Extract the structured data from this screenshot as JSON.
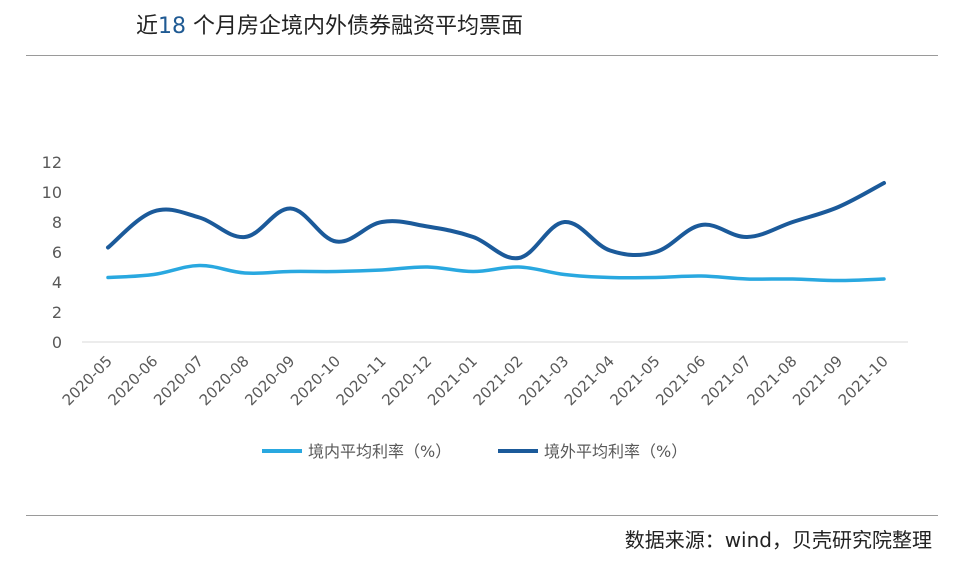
{
  "header": {
    "title_pre": "近",
    "title_num": "18",
    "title_post": " 个月房企境内外债券融资平均票面"
  },
  "footer": {
    "source": "数据来源：wind，贝壳研究院整理"
  },
  "chart_data": {
    "type": "line",
    "x": [
      "2020-05",
      "2020-06",
      "2020-07",
      "2020-08",
      "2020-09",
      "2020-10",
      "2020-11",
      "2020-12",
      "2021-01",
      "2021-02",
      "2021-03",
      "2021-04",
      "2021-05",
      "2021-06",
      "2021-07",
      "2021-08",
      "2021-09",
      "2021-10"
    ],
    "ylim": [
      0,
      12
    ],
    "yticks": [
      0,
      2,
      4,
      6,
      8,
      10,
      12
    ],
    "grid": false,
    "legend": "bottom",
    "smooth": true,
    "series": [
      {
        "name": "境内平均利率（%）",
        "color": "#29a8e0",
        "values": [
          4.3,
          4.5,
          5.1,
          4.6,
          4.7,
          4.7,
          4.8,
          5.0,
          4.7,
          5.0,
          4.5,
          4.3,
          4.3,
          4.4,
          4.2,
          4.2,
          4.1,
          4.2
        ]
      },
      {
        "name": "境外平均利率（%）",
        "color": "#1b5a9a",
        "values": [
          6.3,
          8.7,
          8.3,
          7.0,
          8.9,
          6.7,
          8.0,
          7.7,
          7.0,
          5.6,
          8.0,
          6.1,
          6.0,
          7.8,
          7.0,
          8.0,
          9.0,
          10.6
        ]
      }
    ]
  }
}
